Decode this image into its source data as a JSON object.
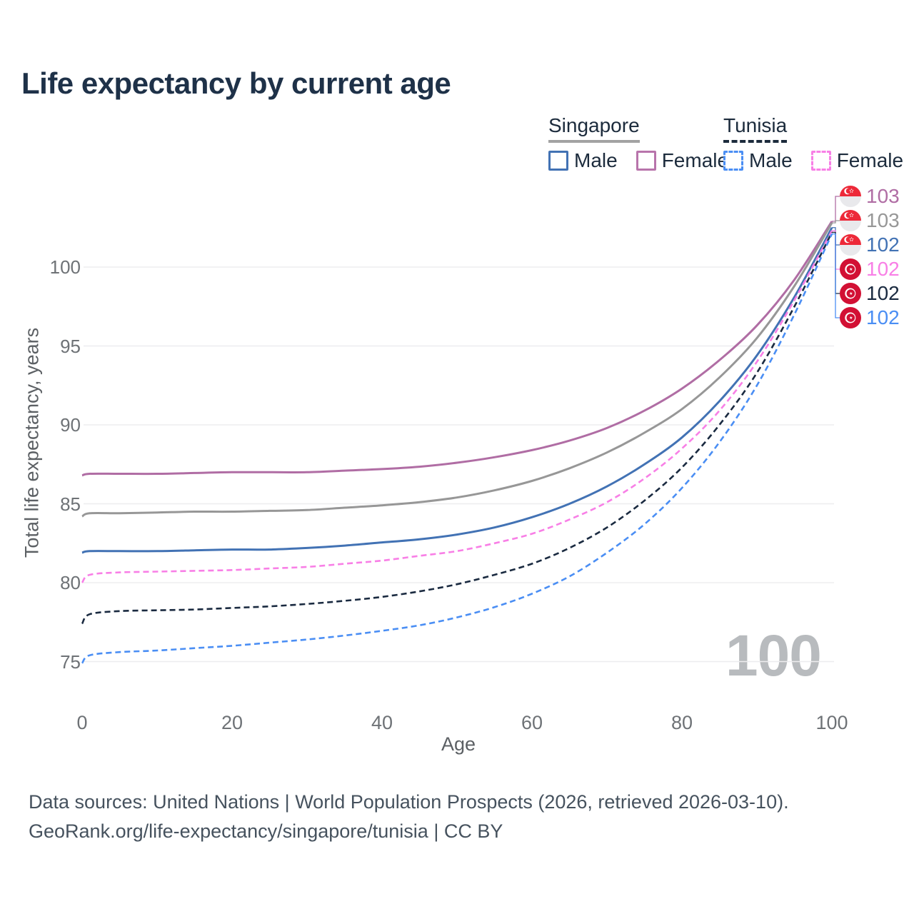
{
  "title": "Life expectancy by current age",
  "legend": {
    "groups": [
      {
        "id": "singapore",
        "label": "Singapore",
        "line_style": "solid",
        "underline_color": "#a3a3a3",
        "items": [
          {
            "label": "Male",
            "color": "#4272b4"
          },
          {
            "label": "Female",
            "color": "#b874ab"
          }
        ]
      },
      {
        "id": "tunisia",
        "label": "Tunisia",
        "line_style": "dashed",
        "underline_color": "#1c2b3c",
        "items": [
          {
            "label": "Male",
            "color": "#4a8ef4"
          },
          {
            "label": "Female",
            "color": "#f87fe6"
          }
        ]
      }
    ]
  },
  "chart_data": {
    "type": "line",
    "title": "Life expectancy by current age",
    "xlabel": "Age",
    "ylabel": "Total life expectancy, years",
    "x_ticks": [
      0,
      20,
      40,
      60,
      80,
      100
    ],
    "y_ticks": [
      75,
      80,
      85,
      90,
      95,
      100
    ],
    "xlim": [
      0,
      100
    ],
    "ylim": [
      73.5,
      104.5
    ],
    "grid": "horizontal-only",
    "legend_position": "top-right",
    "hover_age_label": "100",
    "x": [
      0,
      1,
      5,
      10,
      15,
      20,
      25,
      30,
      35,
      40,
      45,
      50,
      55,
      60,
      65,
      70,
      75,
      80,
      85,
      90,
      95,
      100
    ],
    "series": [
      {
        "name": "Singapore Female",
        "country": "Singapore",
        "sex": "Female",
        "color": "#b06da4",
        "dash": false,
        "end_label": "103",
        "values": [
          86.8,
          86.9,
          86.9,
          86.9,
          86.95,
          87.0,
          87.0,
          87.0,
          87.1,
          87.2,
          87.35,
          87.6,
          87.95,
          88.4,
          89.0,
          89.8,
          90.9,
          92.3,
          94.1,
          96.3,
          99.2,
          102.9
        ]
      },
      {
        "name": "Singapore Both sexes",
        "country": "Singapore",
        "sex": "Both",
        "color": "#979797",
        "dash": false,
        "end_label": "103",
        "values": [
          84.2,
          84.4,
          84.4,
          84.45,
          84.5,
          84.5,
          84.55,
          84.6,
          84.75,
          84.9,
          85.1,
          85.4,
          85.85,
          86.45,
          87.25,
          88.25,
          89.5,
          91.0,
          93.0,
          95.5,
          98.8,
          102.8
        ]
      },
      {
        "name": "Singapore Male",
        "country": "Singapore",
        "sex": "Male",
        "color": "#4272b4",
        "dash": false,
        "end_label": "102",
        "values": [
          81.9,
          82.0,
          82.0,
          82.0,
          82.05,
          82.1,
          82.1,
          82.2,
          82.35,
          82.55,
          82.75,
          83.05,
          83.5,
          84.15,
          85.0,
          86.1,
          87.5,
          89.2,
          91.5,
          94.4,
          98.1,
          102.5
        ]
      },
      {
        "name": "Tunisia Female",
        "country": "Tunisia",
        "sex": "Female",
        "color": "#f87fe6",
        "dash": true,
        "end_label": "102",
        "values": [
          80.0,
          80.5,
          80.65,
          80.7,
          80.75,
          80.8,
          80.9,
          81.0,
          81.2,
          81.4,
          81.7,
          82.0,
          82.5,
          83.1,
          84.0,
          85.1,
          86.6,
          88.5,
          90.9,
          94.0,
          97.9,
          102.3
        ]
      },
      {
        "name": "Tunisia Both sexes",
        "country": "Tunisia",
        "sex": "Both",
        "color": "#1a2a40",
        "dash": true,
        "end_label": "102",
        "values": [
          77.4,
          78.0,
          78.2,
          78.25,
          78.3,
          78.4,
          78.5,
          78.65,
          78.85,
          79.1,
          79.45,
          79.9,
          80.5,
          81.2,
          82.2,
          83.5,
          85.2,
          87.3,
          90.0,
          93.3,
          97.5,
          102.2
        ]
      },
      {
        "name": "Tunisia Male",
        "country": "Tunisia",
        "sex": "Male",
        "color": "#4a8ef4",
        "dash": true,
        "end_label": "102",
        "values": [
          74.9,
          75.4,
          75.6,
          75.7,
          75.85,
          76.0,
          76.2,
          76.4,
          76.65,
          76.95,
          77.3,
          77.8,
          78.45,
          79.3,
          80.4,
          81.9,
          83.7,
          86.0,
          88.9,
          92.5,
          97.0,
          102.1
        ]
      }
    ]
  },
  "footer": {
    "line1": "Data sources: United Nations | World Population Prospects (2026, retrieved 2026-03-10).",
    "line2": "GeoRank.org/life-expectancy/singapore/tunisia | CC BY"
  }
}
